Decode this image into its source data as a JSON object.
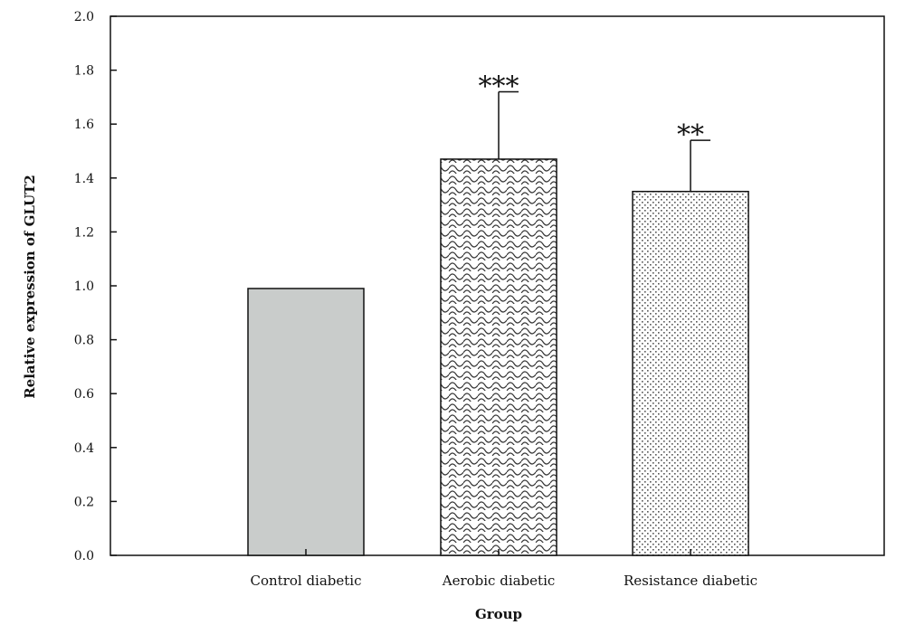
{
  "chart_data": {
    "type": "bar",
    "categories": [
      "Control diabetic",
      "Aerobic diabetic",
      "Resistance diabetic"
    ],
    "values": [
      0.99,
      1.47,
      1.35
    ],
    "error_upper": [
      0,
      0.25,
      0.19
    ],
    "significance": [
      "",
      "***",
      "**"
    ],
    "bar_fills": [
      "solid-gray",
      "wave-hatch",
      "dot-stipple"
    ],
    "bar_color": "#c9cccb",
    "xlabel": "Group",
    "ylabel": "Relative expression of GLUT2",
    "ylim": [
      0,
      2.0
    ],
    "yticks": [
      "0.0",
      "0.2",
      "0.4",
      "0.6",
      "0.8",
      "1.0",
      "1.2",
      "1.4",
      "1.6",
      "1.8",
      "2.0"
    ],
    "grid": false,
    "legend": "none"
  }
}
